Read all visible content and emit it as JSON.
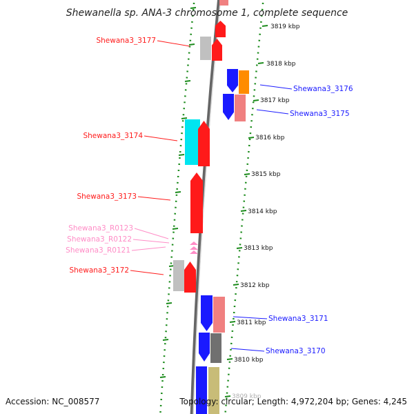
{
  "title": "Shewanella sp. ANA-3 chromosome 1, complete sequence",
  "footer": {
    "accession": "Accession: NC_008577",
    "topology": "Topology: circular; Length: 4,972,204 bp; Genes: 4,245"
  },
  "colors": {
    "red": "#ff1a1a",
    "blue": "#1a1aff",
    "pink": "#f08080",
    "rna": "#ff8cc6",
    "cyan": "#00e5f0",
    "orange": "#ff8c00",
    "gray": "#c0c0c0",
    "dark_gray": "#707070",
    "khaki": "#c8bc78",
    "tick_green": "#1a8a1a"
  },
  "scale_labels": [
    "3819 kbp",
    "3818 kbp",
    "3817 kbp",
    "3816 kbp",
    "3815 kbp",
    "3814 kbp",
    "3813 kbp",
    "3812 kbp",
    "3811 kbp",
    "3810 kbp",
    "3809 kbp"
  ],
  "gene_labels": {
    "left": [
      {
        "text": "Shewana3_3177",
        "color": "red"
      },
      {
        "text": "Shewana3_3174",
        "color": "red"
      },
      {
        "text": "Shewana3_3173",
        "color": "red"
      },
      {
        "text": "Shewana3_R0123",
        "color": "rna"
      },
      {
        "text": "Shewana3_R0122",
        "color": "rna"
      },
      {
        "text": "Shewana3_R0121",
        "color": "rna"
      },
      {
        "text": "Shewana3_3172",
        "color": "red"
      }
    ],
    "right": [
      {
        "text": "Shewana3_3176",
        "color": "blue"
      },
      {
        "text": "Shewana3_3175",
        "color": "blue"
      },
      {
        "text": "Shewana3_3171",
        "color": "blue"
      },
      {
        "text": "Shewana3_3170",
        "color": "blue"
      }
    ]
  }
}
